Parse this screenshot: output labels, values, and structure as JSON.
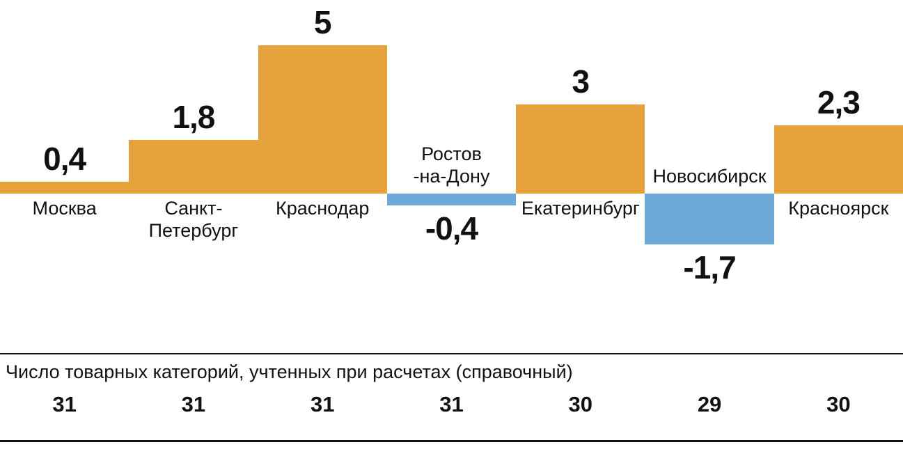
{
  "chart_data": {
    "type": "bar",
    "categories": [
      "Москва",
      "Санкт-\nПетербург",
      "Краснодар",
      "Ростов\n-на-Дону",
      "Екатеринбург",
      "Новосибирск",
      "Красноярск"
    ],
    "values": [
      0.4,
      1.8,
      5,
      -0.4,
      3,
      -1.7,
      2.3
    ],
    "value_labels": [
      "0,4",
      "1,8",
      "5",
      "-0,4",
      "3",
      "-1,7",
      "2,3"
    ],
    "title": "",
    "xlabel": "",
    "ylabel": "",
    "ylim": [
      -2,
      5.5
    ],
    "grid": false,
    "legend": "none",
    "positive_color": "#E8A23C",
    "negative_color": "#6DA8D8"
  },
  "footer": {
    "title": "Число товарных категорий, учтенных при расчетах (справочный)",
    "values": [
      "31",
      "31",
      "31",
      "31",
      "30",
      "29",
      "30"
    ]
  }
}
